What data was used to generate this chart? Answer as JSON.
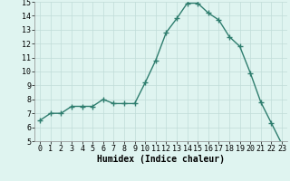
{
  "x": [
    0,
    1,
    2,
    3,
    4,
    5,
    6,
    7,
    8,
    9,
    10,
    11,
    12,
    13,
    14,
    15,
    16,
    17,
    18,
    19,
    20,
    21,
    22,
    23
  ],
  "y": [
    6.5,
    7.0,
    7.0,
    7.5,
    7.5,
    7.5,
    8.0,
    7.7,
    7.7,
    7.7,
    9.2,
    10.8,
    12.8,
    13.8,
    14.9,
    14.9,
    14.2,
    13.7,
    12.5,
    11.8,
    9.9,
    7.8,
    6.3,
    4.8
  ],
  "xlim": [
    -0.5,
    23.5
  ],
  "ylim": [
    5,
    15
  ],
  "yticks": [
    5,
    6,
    7,
    8,
    9,
    10,
    11,
    12,
    13,
    14,
    15
  ],
  "xticks": [
    0,
    1,
    2,
    3,
    4,
    5,
    6,
    7,
    8,
    9,
    10,
    11,
    12,
    13,
    14,
    15,
    16,
    17,
    18,
    19,
    20,
    21,
    22,
    23
  ],
  "xlabel": "Humidex (Indice chaleur)",
  "line_color": "#2e7d6e",
  "bg_color": "#dff4f0",
  "grid_color": "#c0ddd8",
  "marker": "+",
  "marker_size": 4,
  "line_width": 1.0,
  "xlabel_fontsize": 7,
  "tick_fontsize": 6
}
